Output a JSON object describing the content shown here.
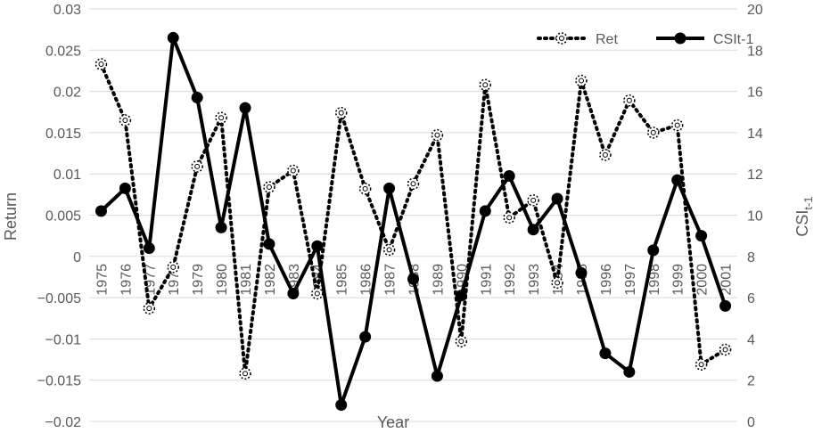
{
  "chart_data": {
    "type": "line",
    "xlabel": "Year",
    "ylabel_left": "Return",
    "ylabel_right_main": "CSI",
    "ylabel_right_sub": "t-1",
    "x": [
      "1975",
      "1976",
      "1977",
      "1978",
      "1979",
      "1980",
      "1981",
      "1982",
      "1983",
      "1984",
      "1985",
      "1986",
      "1987",
      "1988",
      "1989",
      "1990",
      "1991",
      "1992",
      "1993",
      "1994",
      "1995",
      "1996",
      "1997",
      "1998",
      "1999",
      "2000",
      "2001"
    ],
    "ylim_left": [
      -0.02,
      0.03
    ],
    "yticks_left": [
      "0.03",
      "0.025",
      "0.02",
      "0.015",
      "0.01",
      "0.005",
      "0",
      "−0.005",
      "−0.01",
      "−0.015",
      "−0.02"
    ],
    "ylim_right": [
      0,
      20
    ],
    "yticks_right": [
      "20",
      "18",
      "16",
      "14",
      "12",
      "10",
      "8",
      "6",
      "4",
      "2",
      "0"
    ],
    "grid": true,
    "legend_position": "top-right",
    "series": [
      {
        "name": "Ret",
        "axis": "left",
        "style": "dotted",
        "values": [
          0.0233,
          0.0165,
          -0.0063,
          -0.0013,
          0.0109,
          0.0168,
          -0.0142,
          0.0084,
          0.0104,
          -0.0045,
          0.0174,
          0.0082,
          0.0008,
          0.0088,
          0.0147,
          -0.0103,
          0.0208,
          0.0047,
          0.0068,
          -0.0032,
          0.0213,
          0.0123,
          0.0189,
          0.015,
          0.0159,
          -0.0131,
          -0.0113
        ]
      },
      {
        "name": "CSIt-1",
        "axis": "right",
        "style": "solid",
        "values": [
          10.2,
          11.3,
          8.4,
          18.6,
          15.7,
          9.4,
          15.2,
          8.6,
          6.2,
          8.5,
          0.8,
          4.1,
          11.3,
          6.9,
          2.2,
          6.1,
          10.2,
          11.9,
          9.3,
          10.8,
          7.2,
          3.3,
          2.4,
          8.3,
          11.7,
          9.0,
          5.6
        ]
      }
    ]
  }
}
